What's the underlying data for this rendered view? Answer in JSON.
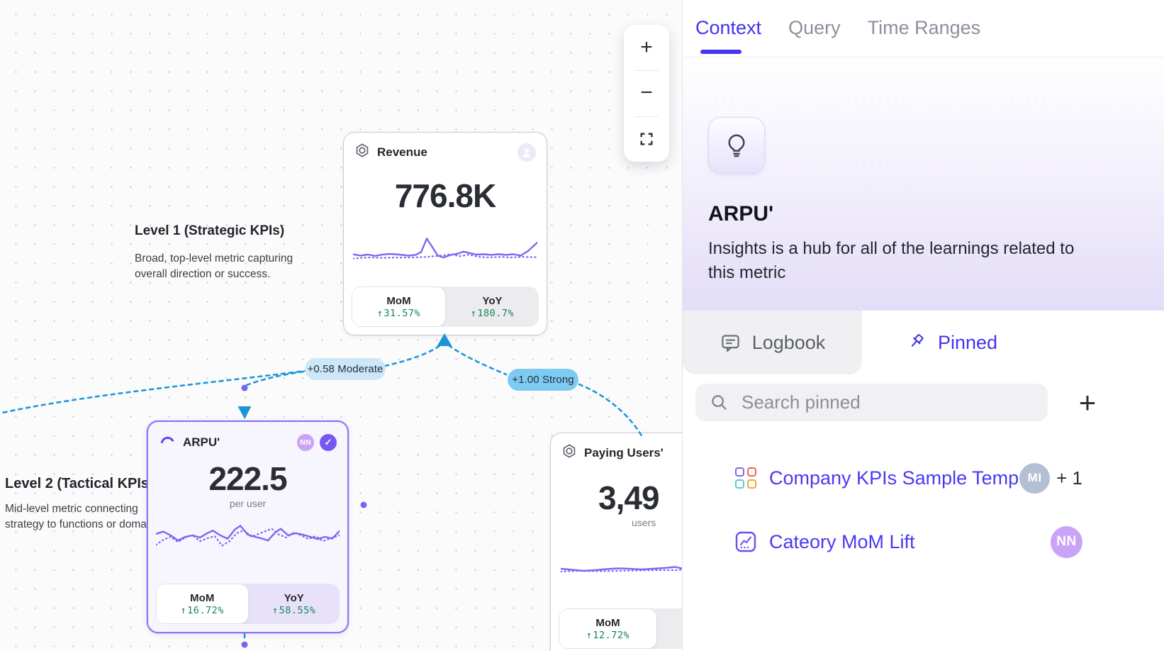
{
  "colors": {
    "accent": "#4533ee",
    "spark_purple": "#7b68f2",
    "green_delta": "#15845d",
    "edge_blue": "#1f97d9",
    "pill_light_blue": "#cde7f8",
    "pill_strong_blue": "#7ecbf2",
    "selection_purple": "#8a78f3",
    "avatar_purple": "#c9a4f6",
    "avatar_gray_blue": "#b3bfd3"
  },
  "canvas": {
    "zoom_controls": {
      "zoom_in": "+",
      "zoom_out": "−"
    },
    "levels": [
      {
        "title": "Level 1 (Strategic KPIs)",
        "desc": "Broad, top-level metric capturing overall direction or success."
      },
      {
        "title": "Level 2 (Tactical KPIs",
        "desc_line1": "Mid-level metric connecting",
        "desc_line2": "strategy to functions or doma"
      }
    ],
    "edges": [
      {
        "label": "+0.58 Moderate"
      },
      {
        "label": "+1.00 Strong"
      }
    ],
    "cards": [
      {
        "title": "Revenue",
        "value": "776.8K",
        "unit": "",
        "segments": [
          {
            "label": "MoM",
            "arrow": "↑",
            "value": "31.57%"
          },
          {
            "label": "YoY",
            "arrow": "↑",
            "value": "180.7%"
          }
        ],
        "spark": {
          "solid": [
            [
              0,
              62
            ],
            [
              4,
              66
            ],
            [
              8,
              63
            ],
            [
              12,
              67
            ],
            [
              16,
              63
            ],
            [
              20,
              61
            ],
            [
              25,
              63
            ],
            [
              30,
              66
            ],
            [
              34,
              64
            ],
            [
              37,
              55
            ],
            [
              40,
              14
            ],
            [
              43,
              40
            ],
            [
              46,
              66
            ],
            [
              49,
              72
            ],
            [
              53,
              64
            ],
            [
              57,
              60
            ],
            [
              60,
              54
            ],
            [
              63,
              58
            ],
            [
              67,
              63
            ],
            [
              71,
              62
            ],
            [
              75,
              64
            ],
            [
              79,
              62
            ],
            [
              83,
              64
            ],
            [
              87,
              62
            ],
            [
              91,
              66
            ],
            [
              95,
              52
            ],
            [
              100,
              26
            ]
          ],
          "dotted": [
            [
              0,
              75
            ],
            [
              8,
              72
            ],
            [
              16,
              73
            ],
            [
              24,
              72
            ],
            [
              32,
              72
            ],
            [
              40,
              70
            ],
            [
              48,
              66
            ],
            [
              53,
              62
            ],
            [
              58,
              68
            ],
            [
              63,
              63
            ],
            [
              68,
              70
            ],
            [
              74,
              72
            ],
            [
              80,
              70
            ],
            [
              86,
              72
            ],
            [
              92,
              70
            ],
            [
              100,
              71
            ]
          ]
        }
      },
      {
        "title": "ARPU'",
        "avatar": "NN",
        "badge_check": "✓",
        "value": "222.5",
        "unit": "per user",
        "segments": [
          {
            "label": "MoM",
            "arrow": "↑",
            "value": "16.72%"
          },
          {
            "label": "YoY",
            "arrow": "↑",
            "value": "58.55%"
          }
        ],
        "spark": {
          "solid": [
            [
              0,
              42
            ],
            [
              4,
              36
            ],
            [
              8,
              46
            ],
            [
              12,
              60
            ],
            [
              16,
              50
            ],
            [
              20,
              46
            ],
            [
              24,
              52
            ],
            [
              28,
              40
            ],
            [
              31,
              33
            ],
            [
              35,
              46
            ],
            [
              39,
              55
            ],
            [
              43,
              30
            ],
            [
              46,
              20
            ],
            [
              50,
              44
            ],
            [
              54,
              50
            ],
            [
              58,
              55
            ],
            [
              61,
              60
            ],
            [
              65,
              38
            ],
            [
              68,
              28
            ],
            [
              72,
              46
            ],
            [
              76,
              40
            ],
            [
              80,
              44
            ],
            [
              84,
              50
            ],
            [
              88,
              56
            ],
            [
              92,
              50
            ],
            [
              96,
              55
            ],
            [
              100,
              34
            ]
          ],
          "dotted": [
            [
              0,
              72
            ],
            [
              4,
              58
            ],
            [
              8,
              50
            ],
            [
              12,
              64
            ],
            [
              16,
              52
            ],
            [
              20,
              46
            ],
            [
              24,
              62
            ],
            [
              28,
              54
            ],
            [
              32,
              48
            ],
            [
              36,
              74
            ],
            [
              40,
              62
            ],
            [
              44,
              40
            ],
            [
              48,
              32
            ],
            [
              52,
              50
            ],
            [
              56,
              42
            ],
            [
              60,
              34
            ],
            [
              63,
              28
            ],
            [
              67,
              44
            ],
            [
              71,
              52
            ],
            [
              75,
              38
            ],
            [
              79,
              46
            ],
            [
              83,
              56
            ],
            [
              87,
              48
            ],
            [
              91,
              62
            ],
            [
              95,
              54
            ],
            [
              100,
              46
            ]
          ]
        }
      },
      {
        "title": "Paying Users'",
        "value": "3,49",
        "unit": "users",
        "segments": [
          {
            "label": "MoM",
            "arrow": "↑",
            "value": "12.72%"
          }
        ],
        "spark": {
          "solid": [
            [
              0,
              66
            ],
            [
              6,
              69
            ],
            [
              12,
              72
            ],
            [
              18,
              70
            ],
            [
              24,
              67
            ],
            [
              30,
              65
            ],
            [
              36,
              66
            ],
            [
              42,
              68
            ],
            [
              48,
              66
            ],
            [
              54,
              64
            ],
            [
              60,
              61
            ],
            [
              64,
              66
            ],
            [
              68,
              62
            ],
            [
              72,
              58
            ],
            [
              76,
              34
            ],
            [
              79,
              12
            ],
            [
              82,
              40
            ],
            [
              86,
              66
            ],
            [
              92,
              70
            ],
            [
              100,
              67
            ]
          ],
          "dotted": [
            [
              0,
              74
            ],
            [
              10,
              72
            ],
            [
              20,
              73
            ],
            [
              30,
              72
            ],
            [
              40,
              71
            ],
            [
              50,
              70
            ],
            [
              60,
              70
            ],
            [
              66,
              68
            ],
            [
              72,
              70
            ],
            [
              80,
              70
            ],
            [
              88,
              71
            ],
            [
              100,
              70
            ]
          ]
        }
      }
    ]
  },
  "panel": {
    "tabs": [
      {
        "label": "Context",
        "active": true
      },
      {
        "label": "Query",
        "active": false
      },
      {
        "label": "Time Ranges",
        "active": false
      }
    ],
    "hero": {
      "title": "ARPU'",
      "description": "Insights is a hub for all of the learnings related to this metric"
    },
    "subtabs": {
      "logbook": "Logbook",
      "pinned": "Pinned"
    },
    "search": {
      "placeholder": "Search pinned",
      "add_label": "+"
    },
    "pinned_items": [
      {
        "label": "Company KPIs Sample Template",
        "avatar": "MI",
        "extra": "+ 1"
      },
      {
        "label": "Cateory MoM Lift",
        "avatar": "NN"
      }
    ]
  }
}
